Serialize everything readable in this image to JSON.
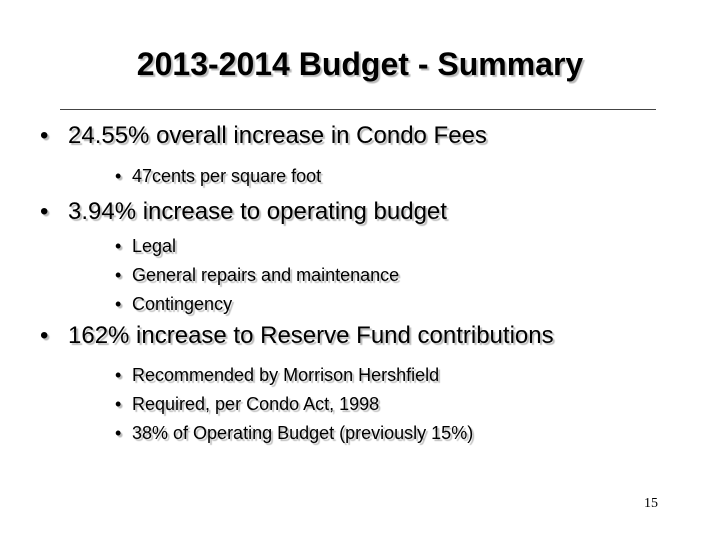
{
  "slide": {
    "title": "2013-2014 Budget - Summary",
    "items": [
      {
        "text": "24.55% overall increase in Condo Fees",
        "subitems": [
          "47cents per square foot"
        ]
      },
      {
        "text": "3.94% increase to operating budget",
        "subitems": [
          "Legal",
          "General repairs and maintenance",
          "Contingency"
        ]
      },
      {
        "text": "162% increase to Reserve Fund contributions",
        "subitems": [
          "Recommended by Morrison Hershfield",
          "Required, per Condo Act, 1998",
          "38% of Operating Budget (previously 15%)"
        ]
      }
    ],
    "page_number": "15"
  }
}
